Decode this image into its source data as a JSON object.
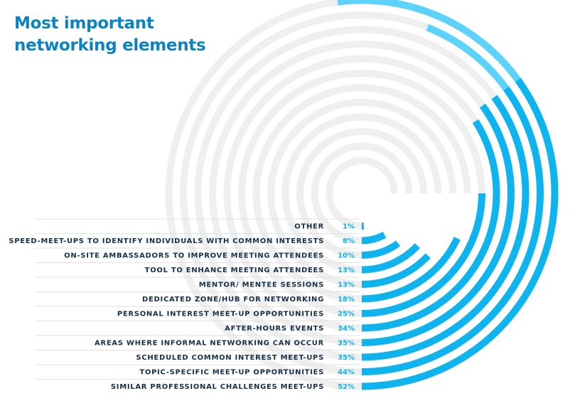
{
  "chart_data": {
    "type": "radial-bar",
    "title_lines": [
      "Most important",
      "networking elements"
    ],
    "scale_max": 100,
    "categories": [
      "OTHER",
      "SPEED-MEET-UPS TO IDENTIFY INDIVIDUALS WITH COMMON INTERESTS",
      "ON-SITE AMBASSADORS TO IMPROVE MEETING ATTENDEES",
      "TOOL TO ENHANCE MEETING ATTENDEES",
      "MENTOR/ MENTEE SESSIONS",
      "DEDICATED ZONE/HUB FOR NETWORKING",
      "PERSONAL INTEREST MEET-UP OPPORTUNITIES",
      "AFTER-HOURS EVENTS",
      "AREAS WHERE INFORMAL NETWORKING CAN OCCUR",
      "SCHEDULED COMMON INTEREST MEET-UPS",
      "TOPIC-SPECIFIC MEET-UP OPPORTUNITIES",
      "SIMILAR PROFESSIONAL CHALLENGES MEET-UPS"
    ],
    "values": [
      1,
      8,
      10,
      13,
      13,
      18,
      25,
      34,
      35,
      35,
      44,
      52
    ],
    "value_labels": [
      "1%",
      "8%",
      "10%",
      "13%",
      "13%",
      "18%",
      "25%",
      "34%",
      "35%",
      "35%",
      "44%",
      "52%"
    ],
    "colors": {
      "light": "#5dd3fb",
      "dark": "#0fb4ee",
      "track": "#efefef",
      "label": "#16304a",
      "title": "#0b83c1"
    }
  }
}
